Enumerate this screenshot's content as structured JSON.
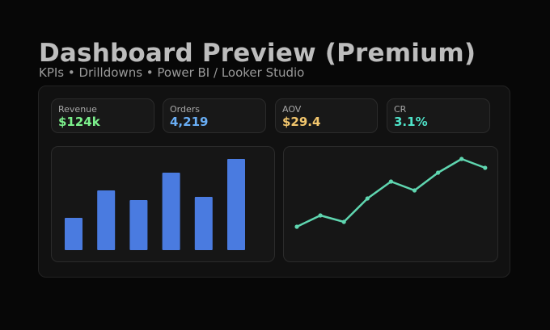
{
  "header": {
    "title": "Dashboard Preview (Premium)",
    "subtitle": "KPIs • Drilldowns • Power BI / Looker Studio"
  },
  "kpis": [
    {
      "label": "Revenue",
      "value": "$124k",
      "color": "#7cf08c"
    },
    {
      "label": "Orders",
      "value": "4,219",
      "color": "#69aef5"
    },
    {
      "label": "AOV",
      "value": "$29.4",
      "color": "#f2c66d"
    },
    {
      "label": "CR",
      "value": "3.1%",
      "color": "#4fe3c9"
    }
  ],
  "colors": {
    "bar": "#4a7be0",
    "line": "#5fd6b0"
  },
  "chart_data": [
    {
      "type": "bar",
      "values": [
        40,
        74,
        62,
        96,
        66,
        113
      ],
      "ylim": [
        0,
        120
      ]
    },
    {
      "type": "line",
      "values": [
        44,
        58,
        50,
        79,
        100,
        89,
        111,
        128,
        117
      ],
      "ylim": [
        40,
        135
      ]
    }
  ]
}
